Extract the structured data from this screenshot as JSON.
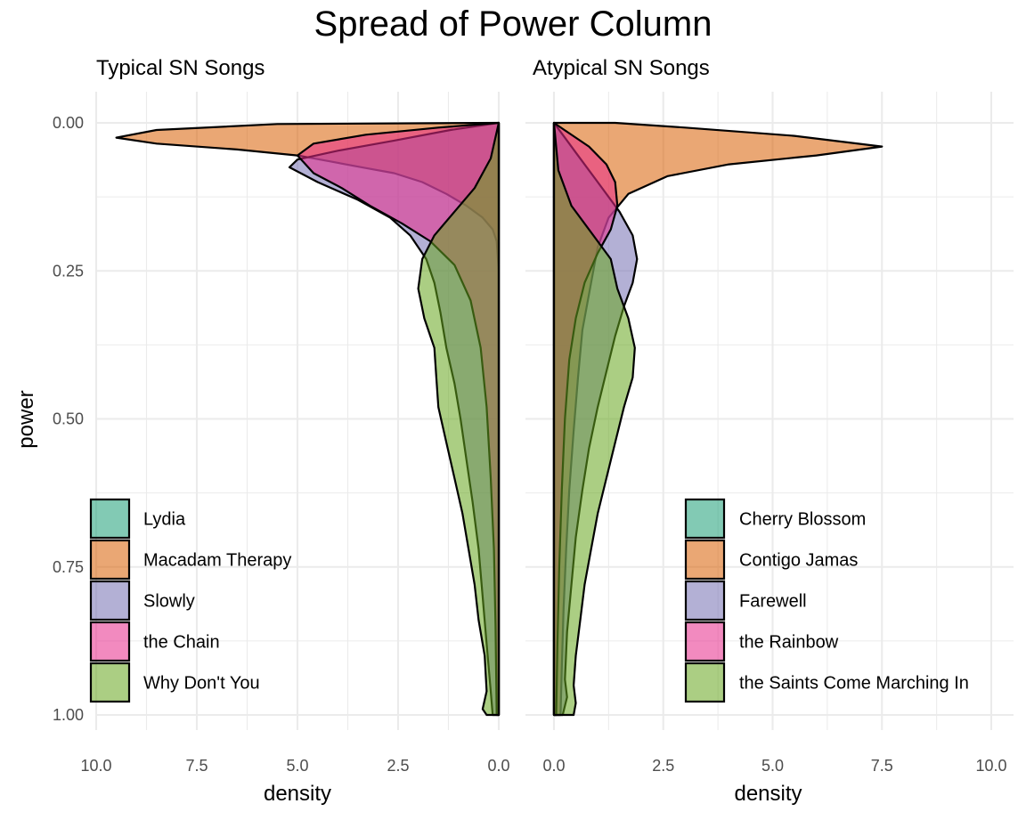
{
  "chart_data": {
    "type": "area",
    "title": "Spread of Power Column",
    "ylabel": "power",
    "ylim": [
      0,
      1
    ],
    "y_reversed": true,
    "y_ticks": [
      "0.00",
      "0.25",
      "0.50",
      "0.75",
      "1.00"
    ],
    "grid": true,
    "panels": [
      {
        "title": "Typical SN Songs",
        "xlabel": "density",
        "x_reversed": true,
        "xlim": [
          0,
          10
        ],
        "x_ticks": [
          "10.0",
          "7.5",
          "5.0",
          "2.5",
          "0.0"
        ],
        "legend_position": "bottom-left",
        "series": [
          {
            "name": "Lydia",
            "color": "#1b9e77",
            "points": [
              [
                0.0,
                0.0
              ],
              [
                0.0,
                1.0
              ]
            ]
          },
          {
            "name": "Macadam Therapy",
            "color": "#d95f02",
            "points": [
              [
                0.0,
                0.0
              ],
              [
                5.5,
                0.002
              ],
              [
                8.5,
                0.012
              ],
              [
                9.5,
                0.025
              ],
              [
                8.5,
                0.035
              ],
              [
                6.5,
                0.045
              ],
              [
                5.0,
                0.055
              ],
              [
                4.2,
                0.065
              ],
              [
                3.4,
                0.075
              ],
              [
                2.6,
                0.085
              ],
              [
                1.9,
                0.1
              ],
              [
                1.3,
                0.12
              ],
              [
                0.8,
                0.14
              ],
              [
                0.4,
                0.16
              ],
              [
                0.15,
                0.18
              ],
              [
                0.05,
                0.2
              ],
              [
                0.0,
                0.25
              ],
              [
                0.0,
                1.0
              ]
            ]
          },
          {
            "name": "Slowly",
            "color": "#7570b3",
            "points": [
              [
                0.0,
                0.0
              ],
              [
                1.2,
                0.012
              ],
              [
                2.6,
                0.03
              ],
              [
                4.0,
                0.047
              ],
              [
                5.0,
                0.062
              ],
              [
                5.2,
                0.075
              ],
              [
                4.5,
                0.1
              ],
              [
                3.5,
                0.13
              ],
              [
                2.7,
                0.16
              ],
              [
                2.2,
                0.19
              ],
              [
                1.8,
                0.23
              ],
              [
                1.6,
                0.27
              ],
              [
                1.45,
                0.32
              ],
              [
                1.3,
                0.38
              ],
              [
                1.1,
                0.44
              ],
              [
                0.95,
                0.5
              ],
              [
                0.8,
                0.57
              ],
              [
                0.65,
                0.64
              ],
              [
                0.5,
                0.72
              ],
              [
                0.4,
                0.8
              ],
              [
                0.3,
                0.88
              ],
              [
                0.2,
                0.96
              ],
              [
                0.15,
                1.0
              ],
              [
                0.0,
                1.0
              ]
            ]
          },
          {
            "name": "the Chain",
            "color": "#e7298a",
            "points": [
              [
                0.0,
                0.0
              ],
              [
                1.5,
                0.008
              ],
              [
                3.3,
                0.02
              ],
              [
                4.6,
                0.035
              ],
              [
                5.0,
                0.055
              ],
              [
                4.6,
                0.085
              ],
              [
                3.9,
                0.11
              ],
              [
                3.2,
                0.14
              ],
              [
                2.4,
                0.17
              ],
              [
                1.7,
                0.2
              ],
              [
                1.1,
                0.24
              ],
              [
                0.7,
                0.3
              ],
              [
                0.45,
                0.38
              ],
              [
                0.3,
                0.48
              ],
              [
                0.2,
                0.6
              ],
              [
                0.12,
                0.72
              ],
              [
                0.08,
                0.85
              ],
              [
                0.05,
                1.0
              ],
              [
                0.0,
                1.0
              ]
            ]
          },
          {
            "name": "Why Don't You",
            "color": "#66a61e",
            "points": [
              [
                0.0,
                0.0
              ],
              [
                0.2,
                0.06
              ],
              [
                0.6,
                0.11
              ],
              [
                1.1,
                0.15
              ],
              [
                1.6,
                0.19
              ],
              [
                1.9,
                0.23
              ],
              [
                2.0,
                0.28
              ],
              [
                1.85,
                0.33
              ],
              [
                1.6,
                0.38
              ],
              [
                1.55,
                0.43
              ],
              [
                1.5,
                0.48
              ],
              [
                1.3,
                0.54
              ],
              [
                1.1,
                0.6
              ],
              [
                0.9,
                0.66
              ],
              [
                0.75,
                0.72
              ],
              [
                0.6,
                0.78
              ],
              [
                0.5,
                0.84
              ],
              [
                0.35,
                0.9
              ],
              [
                0.3,
                0.96
              ],
              [
                0.4,
                0.99
              ],
              [
                0.3,
                1.0
              ],
              [
                0.0,
                1.0
              ]
            ]
          }
        ]
      },
      {
        "title": "Atypical SN Songs",
        "xlabel": "density",
        "x_reversed": false,
        "xlim": [
          0,
          10
        ],
        "x_ticks": [
          "0.0",
          "2.5",
          "5.0",
          "7.5",
          "10.0"
        ],
        "legend_position": "bottom-right",
        "series": [
          {
            "name": "Cherry Blossom",
            "color": "#1b9e77",
            "points": [
              [
                0.0,
                0.0
              ],
              [
                0.0,
                1.0
              ]
            ]
          },
          {
            "name": "Contigo Jamas",
            "color": "#d95f02",
            "points": [
              [
                0.0,
                0.0
              ],
              [
                1.4,
                0.0
              ],
              [
                3.0,
                0.008
              ],
              [
                5.5,
                0.022
              ],
              [
                7.5,
                0.04
              ],
              [
                6.0,
                0.055
              ],
              [
                4.0,
                0.07
              ],
              [
                2.6,
                0.09
              ],
              [
                1.7,
                0.12
              ],
              [
                1.25,
                0.16
              ],
              [
                1.0,
                0.21
              ],
              [
                0.85,
                0.27
              ],
              [
                0.65,
                0.35
              ],
              [
                0.55,
                0.43
              ],
              [
                0.45,
                0.52
              ],
              [
                0.35,
                0.62
              ],
              [
                0.28,
                0.72
              ],
              [
                0.22,
                0.82
              ],
              [
                0.18,
                0.92
              ],
              [
                0.15,
                1.0
              ],
              [
                0.0,
                1.0
              ]
            ]
          },
          {
            "name": "Farewell",
            "color": "#7570b3",
            "points": [
              [
                0.0,
                0.0
              ],
              [
                0.2,
                0.02
              ],
              [
                0.5,
                0.05
              ],
              [
                1.0,
                0.1
              ],
              [
                1.5,
                0.15
              ],
              [
                1.8,
                0.19
              ],
              [
                1.9,
                0.23
              ],
              [
                1.8,
                0.27
              ],
              [
                1.6,
                0.31
              ],
              [
                1.4,
                0.36
              ],
              [
                1.2,
                0.42
              ],
              [
                1.0,
                0.48
              ],
              [
                0.8,
                0.55
              ],
              [
                0.65,
                0.62
              ],
              [
                0.5,
                0.7
              ],
              [
                0.4,
                0.78
              ],
              [
                0.3,
                0.86
              ],
              [
                0.25,
                0.94
              ],
              [
                0.3,
                0.97
              ],
              [
                0.2,
                1.0
              ],
              [
                0.0,
                1.0
              ]
            ]
          },
          {
            "name": "the Rainbow",
            "color": "#e7298a",
            "points": [
              [
                0.0,
                0.0
              ],
              [
                0.3,
                0.015
              ],
              [
                0.8,
                0.04
              ],
              [
                1.2,
                0.07
              ],
              [
                1.4,
                0.1
              ],
              [
                1.45,
                0.14
              ],
              [
                1.3,
                0.18
              ],
              [
                1.0,
                0.22
              ],
              [
                0.7,
                0.27
              ],
              [
                0.5,
                0.33
              ],
              [
                0.35,
                0.4
              ],
              [
                0.25,
                0.5
              ],
              [
                0.18,
                0.62
              ],
              [
                0.12,
                0.75
              ],
              [
                0.08,
                0.88
              ],
              [
                0.05,
                1.0
              ],
              [
                0.0,
                1.0
              ]
            ]
          },
          {
            "name": "the Saints Come Marching In",
            "color": "#66a61e",
            "points": [
              [
                0.0,
                0.0
              ],
              [
                0.1,
                0.08
              ],
              [
                0.4,
                0.14
              ],
              [
                0.9,
                0.19
              ],
              [
                1.3,
                0.23
              ],
              [
                1.45,
                0.28
              ],
              [
                1.7,
                0.33
              ],
              [
                1.85,
                0.38
              ],
              [
                1.8,
                0.43
              ],
              [
                1.6,
                0.48
              ],
              [
                1.4,
                0.54
              ],
              [
                1.2,
                0.6
              ],
              [
                1.0,
                0.66
              ],
              [
                0.85,
                0.72
              ],
              [
                0.7,
                0.78
              ],
              [
                0.6,
                0.84
              ],
              [
                0.5,
                0.9
              ],
              [
                0.45,
                0.95
              ],
              [
                0.5,
                0.98
              ],
              [
                0.45,
                1.0
              ],
              [
                0.0,
                1.0
              ]
            ]
          }
        ]
      }
    ]
  }
}
